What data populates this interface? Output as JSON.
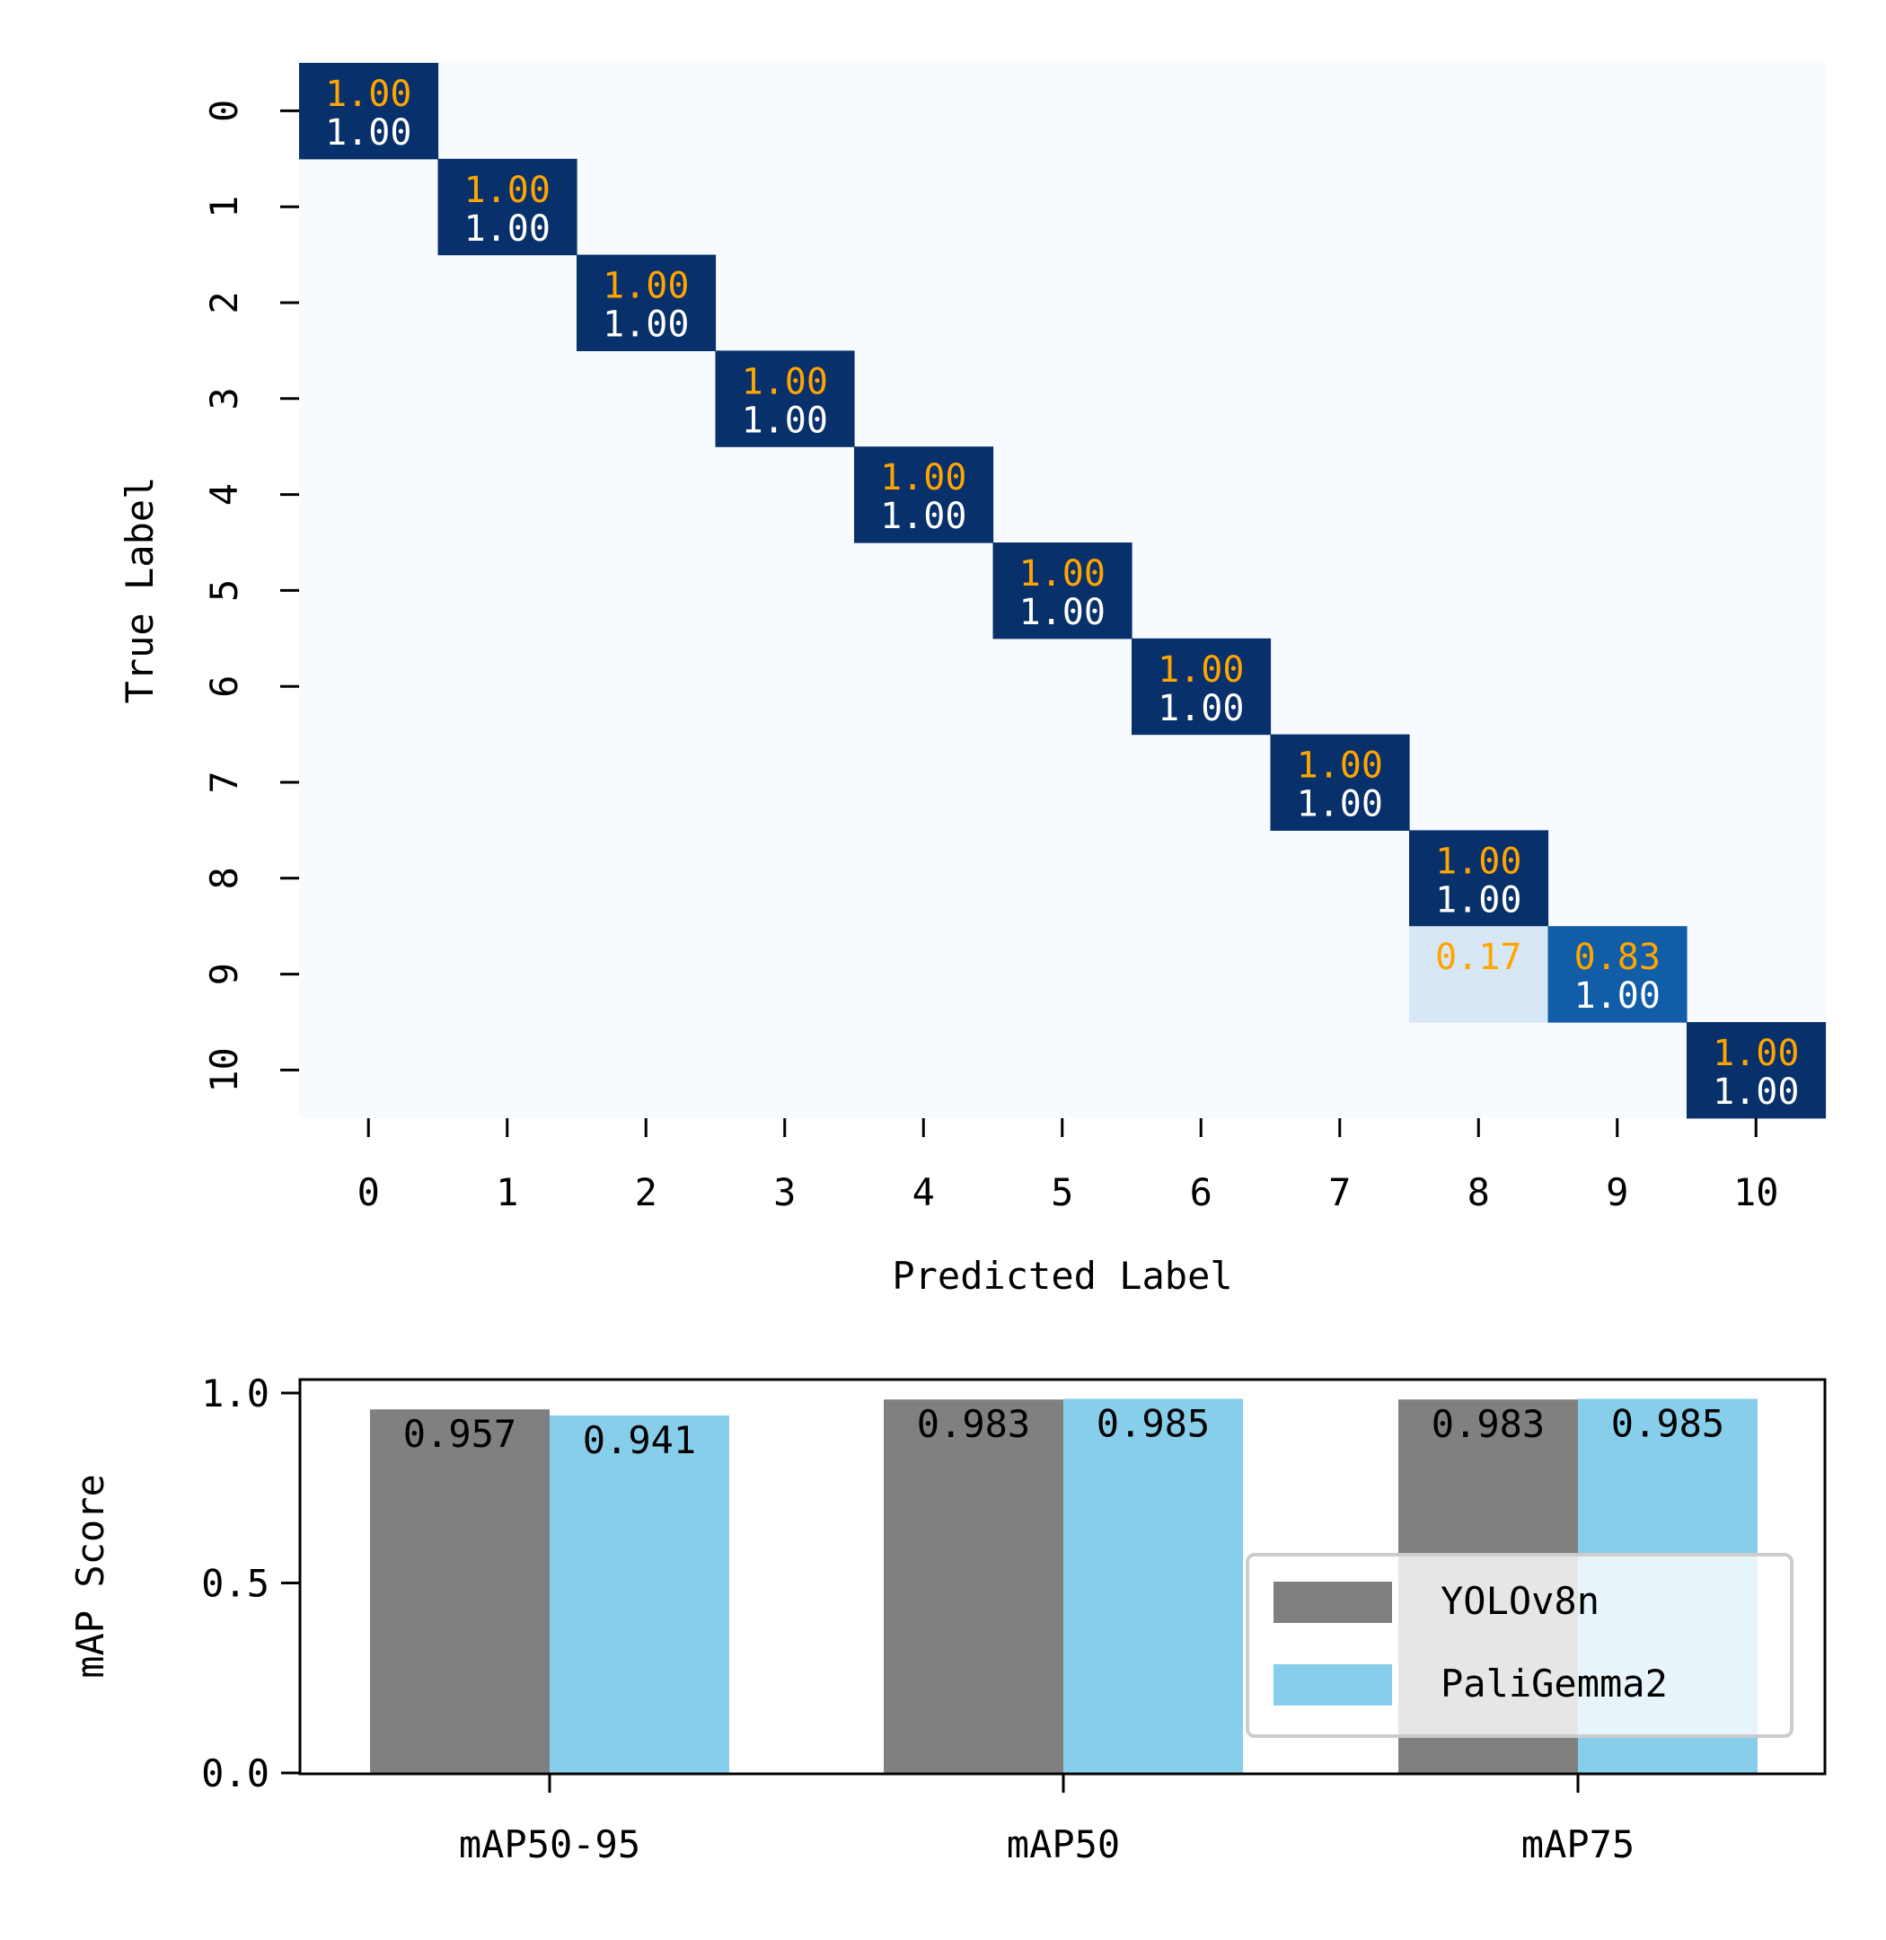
{
  "chart_data": [
    {
      "type": "heatmap",
      "xlabel": "Predicted Label",
      "ylabel": "True Label",
      "x_categories": [
        "0",
        "1",
        "2",
        "3",
        "4",
        "5",
        "6",
        "7",
        "8",
        "9",
        "10"
      ],
      "y_categories": [
        "0",
        "1",
        "2",
        "3",
        "4",
        "5",
        "6",
        "7",
        "8",
        "9",
        "10"
      ],
      "colormap": "Blues",
      "annotation_colors": {
        "top": "#FFA500",
        "bottom": "#FFFFFF"
      },
      "cells": [
        {
          "row": 0,
          "col": 0,
          "value": 1.0,
          "top_label": "1.00",
          "bottom_label": "1.00"
        },
        {
          "row": 1,
          "col": 1,
          "value": 1.0,
          "top_label": "1.00",
          "bottom_label": "1.00"
        },
        {
          "row": 2,
          "col": 2,
          "value": 1.0,
          "top_label": "1.00",
          "bottom_label": "1.00"
        },
        {
          "row": 3,
          "col": 3,
          "value": 1.0,
          "top_label": "1.00",
          "bottom_label": "1.00"
        },
        {
          "row": 4,
          "col": 4,
          "value": 1.0,
          "top_label": "1.00",
          "bottom_label": "1.00"
        },
        {
          "row": 5,
          "col": 5,
          "value": 1.0,
          "top_label": "1.00",
          "bottom_label": "1.00"
        },
        {
          "row": 6,
          "col": 6,
          "value": 1.0,
          "top_label": "1.00",
          "bottom_label": "1.00"
        },
        {
          "row": 7,
          "col": 7,
          "value": 1.0,
          "top_label": "1.00",
          "bottom_label": "1.00"
        },
        {
          "row": 8,
          "col": 8,
          "value": 1.0,
          "top_label": "1.00",
          "bottom_label": "1.00"
        },
        {
          "row": 9,
          "col": 8,
          "value": 0.17,
          "top_label": "0.17",
          "bottom_label": ""
        },
        {
          "row": 9,
          "col": 9,
          "value": 0.83,
          "top_label": "0.83",
          "bottom_label": "1.00"
        },
        {
          "row": 10,
          "col": 10,
          "value": 1.0,
          "top_label": "1.00",
          "bottom_label": "1.00"
        }
      ]
    },
    {
      "type": "bar",
      "ylabel": "mAP Score",
      "categories": [
        "mAP50-95",
        "mAP50",
        "mAP75"
      ],
      "series": [
        {
          "name": "YOLOv8n",
          "color": "#808080",
          "values": [
            0.957,
            0.983,
            0.983
          ],
          "labels": [
            "0.957",
            "0.983",
            "0.983"
          ]
        },
        {
          "name": "PaliGemma2",
          "color": "#87CEEB",
          "values": [
            0.941,
            0.985,
            0.985
          ],
          "labels": [
            "0.941",
            "0.985",
            "0.985"
          ]
        }
      ],
      "ylim": [
        0,
        1.0
      ],
      "yticks": [
        "0.0",
        "0.5",
        "1.0"
      ],
      "grid": false,
      "legend_position": "lower-right"
    }
  ]
}
